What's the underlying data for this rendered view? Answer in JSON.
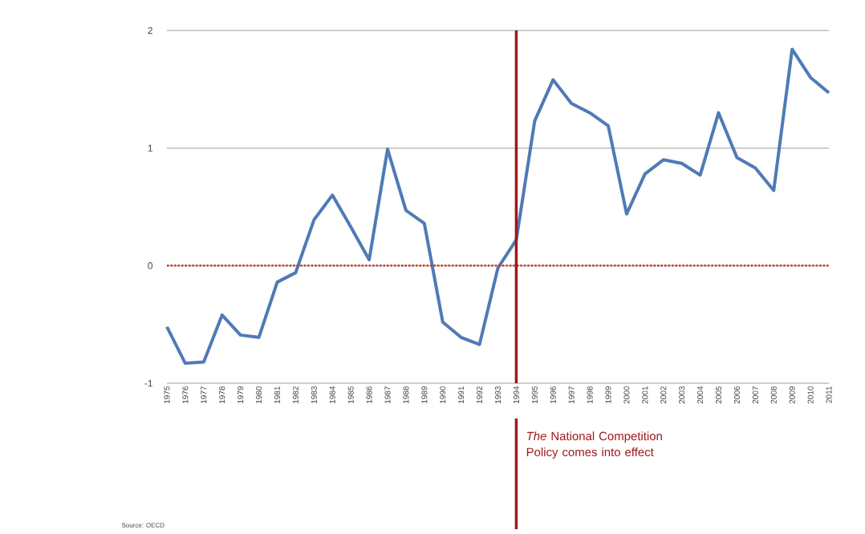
{
  "chart_data": {
    "type": "line",
    "categories": [
      "1975",
      "1976",
      "1977",
      "1978",
      "1979",
      "1980",
      "1981",
      "1982",
      "1983",
      "1984",
      "1985",
      "1986",
      "1987",
      "1988",
      "1989",
      "1990",
      "1991",
      "1992",
      "1993",
      "1994",
      "1995",
      "1996",
      "1997",
      "1998",
      "1999",
      "2000",
      "2001",
      "2002",
      "2003",
      "2004",
      "2005",
      "2006",
      "2007",
      "2008",
      "2009",
      "2010",
      "2011"
    ],
    "series": [
      {
        "color": "#4f7bb5",
        "values": [
          -0.52,
          -0.83,
          -0.82,
          -0.42,
          -0.59,
          -0.61,
          -0.14,
          -0.06,
          0.39,
          0.6,
          0.33,
          0.05,
          0.99,
          0.47,
          0.36,
          -0.48,
          -0.61,
          -0.67,
          -0.02,
          0.22,
          1.23,
          1.58,
          1.38,
          1.3,
          1.19,
          0.44,
          0.78,
          0.9,
          0.87,
          0.77,
          1.3,
          0.92,
          0.83,
          0.64,
          1.84,
          1.6,
          1.47
        ]
      }
    ],
    "ylim": [
      -1,
      2
    ],
    "yticks": [
      -1,
      0,
      1,
      2
    ],
    "grid": "y",
    "ref_lines": [
      {
        "axis": "y",
        "value": 0,
        "color": "#c0392b",
        "line_style": "dotted"
      },
      {
        "axis": "x",
        "value": "1994",
        "color": "#a01818",
        "label": "*The* National Competition Policy comes into effect"
      }
    ],
    "annotations": [
      "Source:  OECD"
    ]
  }
}
